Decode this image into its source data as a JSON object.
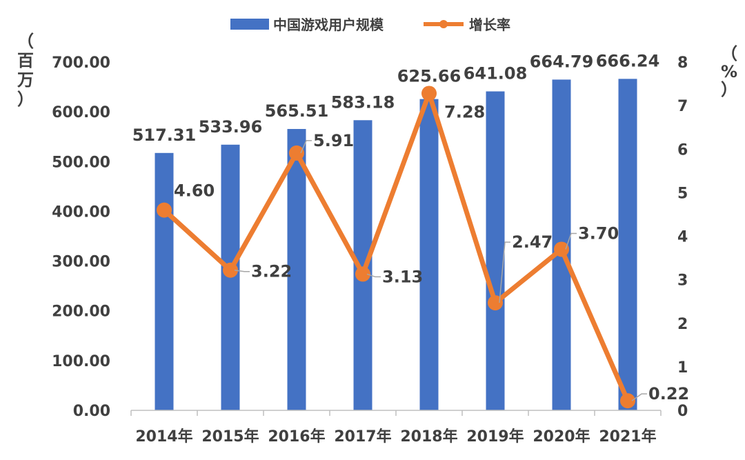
{
  "chart_data": {
    "type": "bar+line",
    "categories": [
      "2014年",
      "2015年",
      "2016年",
      "2017年",
      "2018年",
      "2019年",
      "2020年",
      "2021年"
    ],
    "series": [
      {
        "name": "中国游戏用户规模",
        "type": "bar",
        "axis": "left",
        "color": "#4472C4",
        "values": [
          517.31,
          533.96,
          565.51,
          583.18,
          625.66,
          641.08,
          664.79,
          666.24
        ],
        "labels": [
          "517.31",
          "533.96",
          "565.51",
          "583.18",
          "625.66",
          "641.08",
          "664.79",
          "666.24"
        ]
      },
      {
        "name": "增长率",
        "type": "line",
        "axis": "right",
        "color": "#ED7D31",
        "values": [
          4.6,
          3.22,
          5.91,
          3.13,
          7.28,
          2.47,
          3.7,
          0.22
        ],
        "labels": [
          "4.60",
          "3.22",
          "5.91",
          "3.13",
          "7.28",
          "2.47",
          "3.70",
          "0.22"
        ]
      }
    ],
    "y_left": {
      "ticks": [
        "0.00",
        "100.00",
        "200.00",
        "300.00",
        "400.00",
        "500.00",
        "600.00",
        "700.00"
      ],
      "ylim": [
        0,
        700
      ],
      "unit_chars": [
        "（",
        "百",
        "万",
        "）"
      ]
    },
    "y_right": {
      "ticks": [
        "0",
        "1",
        "2",
        "3",
        "4",
        "5",
        "6",
        "7",
        "8"
      ],
      "ylim": [
        0,
        8
      ],
      "unit_chars": [
        "（",
        "%",
        "）"
      ]
    },
    "legend": "top-center",
    "grid": false
  }
}
